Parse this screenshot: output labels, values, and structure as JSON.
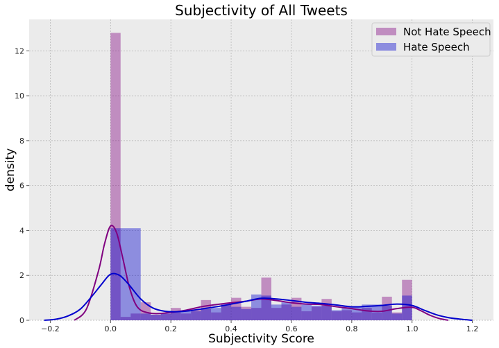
{
  "chart_data": {
    "type": "histogram",
    "title": "Subjectivity of All Tweets",
    "xlabel": "Subjectivity Score",
    "ylabel": "density",
    "xlim": [
      -0.27,
      1.27
    ],
    "ylim": [
      0,
      13.4
    ],
    "x_ticks": [
      -0.2,
      0.0,
      0.2,
      0.4,
      0.6,
      0.8,
      1.0,
      1.2
    ],
    "x_tick_labels": [
      "−0.2",
      "0.0",
      "0.2",
      "0.4",
      "0.6",
      "0.8",
      "1.0",
      "1.2"
    ],
    "y_ticks": [
      0,
      2,
      4,
      6,
      8,
      10,
      12
    ],
    "y_tick_labels": [
      "0",
      "2",
      "4",
      "6",
      "8",
      "10",
      "12"
    ],
    "grid": true,
    "legend_position": "top-right",
    "series": [
      {
        "name": "Not Hate Speech",
        "color": "#800080",
        "bin_edges": [
          0.0,
          0.0333,
          0.0667,
          0.1,
          0.1333,
          0.1667,
          0.2,
          0.2333,
          0.2667,
          0.3,
          0.3333,
          0.3667,
          0.4,
          0.4333,
          0.4667,
          0.5,
          0.5333,
          0.5667,
          0.6,
          0.6333,
          0.6667,
          0.7,
          0.7333,
          0.7667,
          0.8,
          0.8333,
          0.8667,
          0.9,
          0.9333,
          0.9667,
          1.0
        ],
        "densities": [
          12.8,
          0.15,
          0.3,
          0.8,
          0.25,
          0.3,
          0.55,
          0.3,
          0.5,
          0.9,
          0.35,
          0.7,
          1.0,
          0.6,
          0.55,
          1.9,
          0.55,
          0.7,
          1.0,
          0.4,
          0.6,
          0.95,
          0.4,
          0.45,
          0.35,
          0.55,
          0.35,
          1.05,
          0.35,
          1.8
        ],
        "kde_x": [
          -0.12,
          -0.08,
          -0.04,
          -0.02,
          0.0,
          0.02,
          0.04,
          0.06,
          0.08,
          0.1,
          0.13,
          0.16,
          0.2,
          0.25,
          0.3,
          0.35,
          0.4,
          0.45,
          0.5,
          0.55,
          0.6,
          0.65,
          0.7,
          0.75,
          0.8,
          0.85,
          0.9,
          0.95,
          1.0,
          1.03,
          1.06,
          1.09,
          1.12
        ],
        "kde_y": [
          0.0,
          0.5,
          2.2,
          3.4,
          4.2,
          3.9,
          2.8,
          1.6,
          0.8,
          0.45,
          0.32,
          0.3,
          0.35,
          0.45,
          0.6,
          0.7,
          0.78,
          0.85,
          0.95,
          0.88,
          0.78,
          0.72,
          0.7,
          0.6,
          0.52,
          0.42,
          0.4,
          0.52,
          0.58,
          0.42,
          0.22,
          0.08,
          0.0
        ]
      },
      {
        "name": "Hate Speech",
        "color": "#0000cd",
        "bin_edges": [
          0.0,
          0.1,
          0.1333,
          0.1667,
          0.2,
          0.2333,
          0.2667,
          0.3,
          0.3333,
          0.3667,
          0.4,
          0.4333,
          0.4667,
          0.5,
          0.5333,
          0.5667,
          0.6,
          0.6333,
          0.6667,
          0.7,
          0.7333,
          0.7667,
          0.8,
          0.8333,
          0.8667,
          0.9,
          0.9333,
          0.9667,
          1.0
        ],
        "densities": [
          4.1,
          0.3,
          0.25,
          0.3,
          0.35,
          0.4,
          0.4,
          0.5,
          0.55,
          0.7,
          0.6,
          0.5,
          1.15,
          1.1,
          0.7,
          0.8,
          0.6,
          0.7,
          0.65,
          0.65,
          0.45,
          0.6,
          0.6,
          0.7,
          0.7,
          0.65,
          0.3,
          1.1
        ],
        "kde_x": [
          -0.22,
          -0.18,
          -0.14,
          -0.1,
          -0.06,
          -0.03,
          0.0,
          0.03,
          0.06,
          0.1,
          0.14,
          0.18,
          0.22,
          0.26,
          0.3,
          0.35,
          0.4,
          0.45,
          0.5,
          0.55,
          0.6,
          0.65,
          0.7,
          0.75,
          0.8,
          0.85,
          0.9,
          0.95,
          1.0,
          1.04,
          1.08,
          1.12,
          1.16,
          1.2
        ],
        "kde_y": [
          0.0,
          0.05,
          0.2,
          0.5,
          1.1,
          1.6,
          2.05,
          2.0,
          1.6,
          0.95,
          0.55,
          0.4,
          0.38,
          0.42,
          0.5,
          0.6,
          0.72,
          0.85,
          0.98,
          0.95,
          0.88,
          0.8,
          0.75,
          0.68,
          0.6,
          0.62,
          0.66,
          0.72,
          0.66,
          0.45,
          0.25,
          0.12,
          0.05,
          0.0
        ]
      }
    ]
  }
}
